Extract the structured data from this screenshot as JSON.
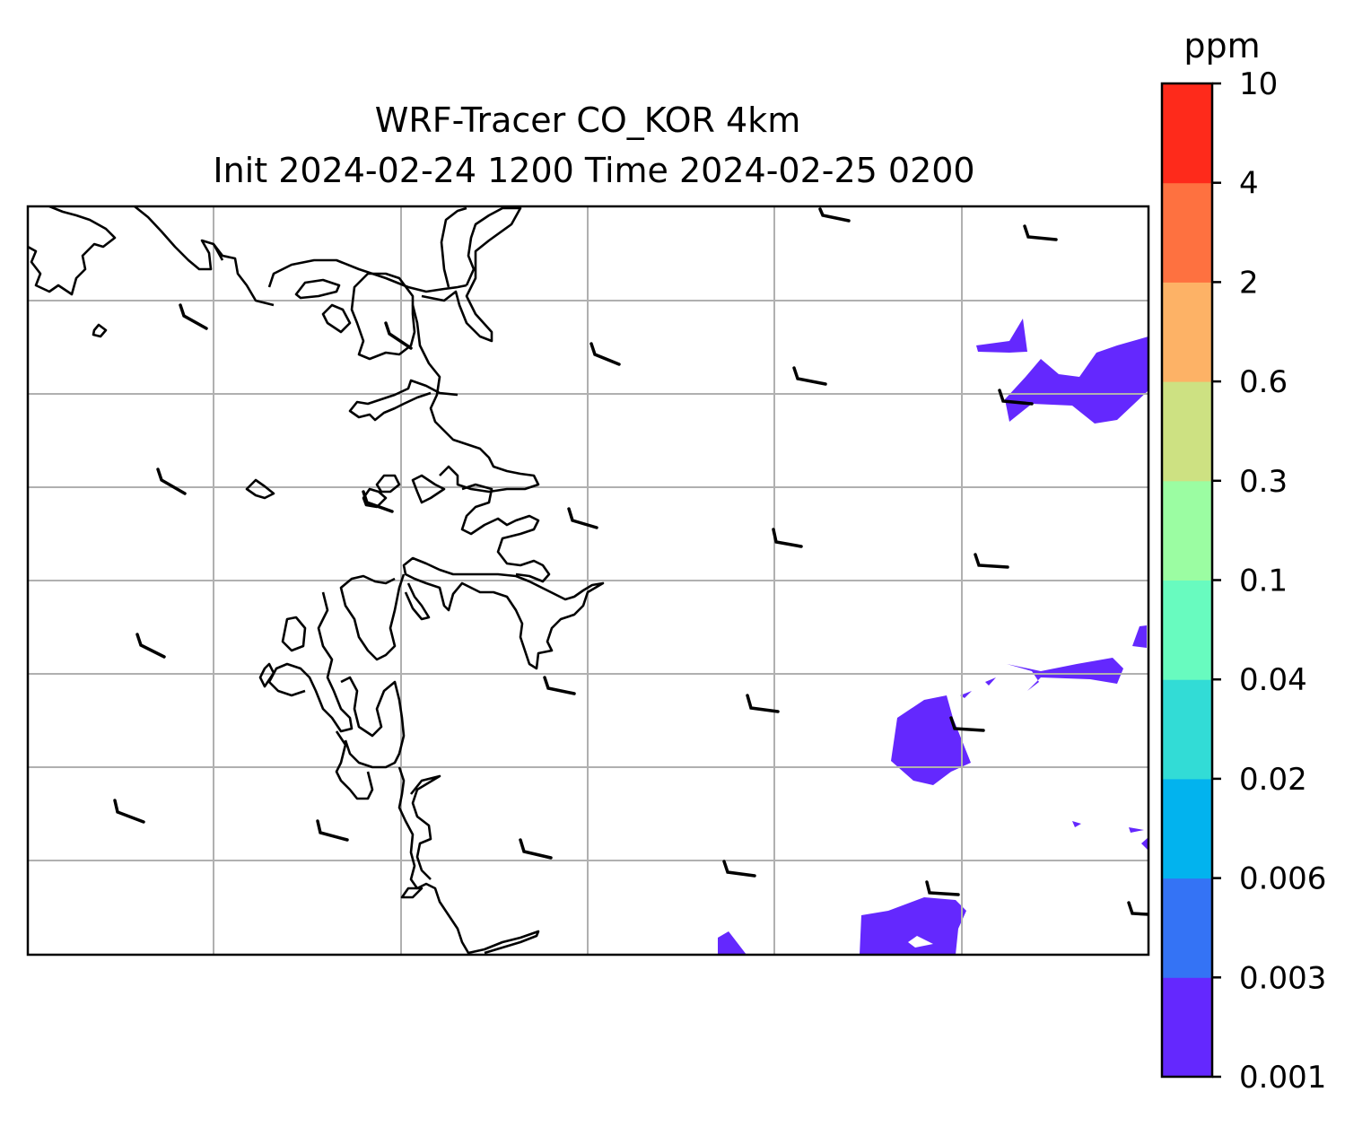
{
  "title": {
    "line1": "WRF-Tracer CO_KOR 4km",
    "line2": "Init 2024-02-24 1200 Time 2024-02-25 0200"
  },
  "colorbar": {
    "unit": "ppm",
    "levels": [
      "0.001",
      "0.003",
      "0.006",
      "0.02",
      "0.04",
      "0.1",
      "0.3",
      "0.6",
      "2",
      "4",
      "10"
    ],
    "colors": [
      "#6428fe",
      "#3473f5",
      "#02b3ee",
      "#32dcd6",
      "#68fbbf",
      "#9bfda2",
      "#cde182",
      "#fdb266",
      "#fe7140",
      "#fe2a1b"
    ]
  },
  "map": {
    "gridlines": true,
    "coastline_color": "#000000",
    "grid_color": "#b0b0b0",
    "field_color": "#6428fe",
    "wind_barbs": true
  }
}
